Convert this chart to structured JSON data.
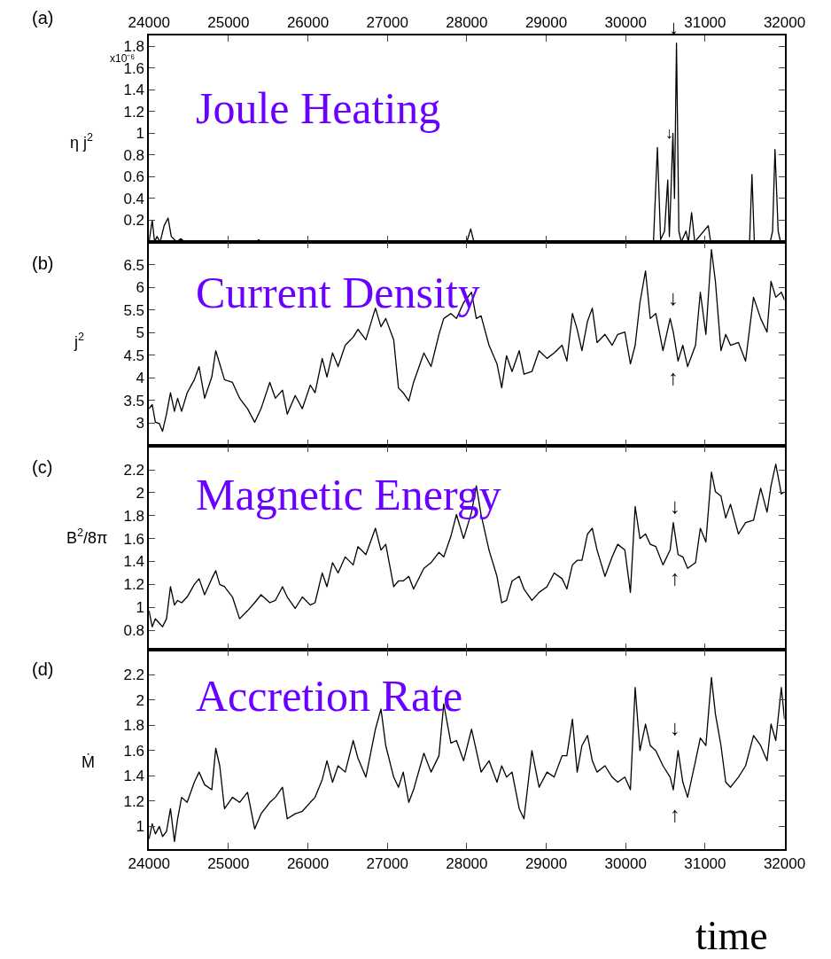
{
  "chart_data": [
    {
      "type": "line",
      "title": "Joule Heating",
      "ylabel": "η j$^{2}$",
      "annotations": [
        "(a)",
        "x10⁻⁶",
        "↓",
        "↓"
      ],
      "xlim": [
        24000,
        32000
      ],
      "xticks": [
        24000,
        25000,
        26000,
        27000,
        28000,
        29000,
        30000,
        31000,
        32000
      ],
      "ylim": [
        0,
        1.9
      ],
      "yticks": [
        0.2,
        0.4,
        0.6,
        0.8,
        1,
        1.2,
        1.4,
        1.6,
        1.8
      ],
      "grid": false,
      "marker": "none",
      "line_style": "solid",
      "series": [
        {
          "color": "#000000",
          "x": [
            24000,
            24040,
            24070,
            24100,
            24140,
            24190,
            24240,
            24280,
            24350,
            24400,
            24450,
            25350,
            25380,
            25410,
            28000,
            28050,
            28090,
            30350,
            30400,
            30440,
            30490,
            30530,
            30550,
            30575,
            30595,
            30615,
            30640,
            30670,
            30700,
            30760,
            30790,
            30830,
            30870,
            31040,
            31070,
            31560,
            31590,
            31620,
            31820,
            31850,
            31880,
            31920,
            31950,
            32000
          ],
          "values": [
            0,
            0.2,
            0,
            0.05,
            0,
            0.15,
            0.22,
            0.05,
            0,
            0.03,
            0,
            0,
            0.02,
            0,
            0,
            0.12,
            0,
            0,
            0.87,
            0.02,
            0.1,
            0.57,
            0.05,
            0.55,
            1.0,
            0.4,
            1.83,
            0.1,
            0,
            0.1,
            0,
            0.27,
            0,
            0.15,
            0,
            0,
            0.62,
            0,
            0,
            0.1,
            0.85,
            0.1,
            0,
            0
          ]
        }
      ]
    },
    {
      "type": "line",
      "title": "Current Density",
      "ylabel": "j$^{2}$",
      "annotations": [
        "(b)",
        "↓",
        "↑"
      ],
      "xlim": [
        24000,
        32000
      ],
      "xticks": [
        24000,
        25000,
        26000,
        27000,
        28000,
        29000,
        30000,
        31000,
        32000
      ],
      "ylim": [
        2.5,
        7
      ],
      "yticks": [
        3,
        3.5,
        4,
        4.5,
        5,
        5.5,
        6,
        6.5
      ],
      "tick_labels": "y",
      "grid": false,
      "marker": "none",
      "line_style": "solid",
      "x": [
        24000,
        24040,
        24080,
        24130,
        24170,
        24220,
        24270,
        24320,
        24360,
        24410,
        24480,
        24570,
        24630,
        24700,
        24790,
        24840,
        24890,
        24950,
        25050,
        25140,
        25240,
        25330,
        25410,
        25520,
        25590,
        25680,
        25740,
        25840,
        25930,
        26030,
        26090,
        26180,
        26240,
        26310,
        26380,
        26470,
        26570,
        26630,
        26730,
        26850,
        26920,
        26980,
        27080,
        27140,
        27200,
        27270,
        27330,
        27460,
        27550,
        27650,
        27710,
        27800,
        27870,
        27960,
        28060,
        28120,
        28180,
        28280,
        28380,
        28440,
        28500,
        28570,
        28660,
        28720,
        28820,
        28910,
        29010,
        29100,
        29200,
        29260,
        29330,
        29390,
        29450,
        29520,
        29580,
        29640,
        29740,
        29830,
        29900,
        29990,
        30060,
        30120,
        30180,
        30250,
        30310,
        30380,
        30470,
        30560,
        30600,
        30660,
        30720,
        30780,
        30880,
        30940,
        31010,
        31080,
        31130,
        31200,
        31260,
        31320,
        31420,
        31510,
        31610,
        31700,
        31780,
        31830,
        31890,
        31960,
        32000
      ],
      "series": [
        {
          "color": "#000000",
          "values": [
            3.32,
            3.41,
            3.02,
            2.99,
            2.82,
            3.2,
            3.67,
            3.26,
            3.55,
            3.26,
            3.67,
            3.96,
            4.25,
            3.55,
            4.02,
            4.6,
            4.31,
            3.96,
            3.9,
            3.55,
            3.32,
            3.02,
            3.32,
            3.9,
            3.55,
            3.73,
            3.2,
            3.61,
            3.32,
            3.84,
            3.67,
            4.43,
            4.02,
            4.55,
            4.25,
            4.72,
            4.9,
            5.07,
            4.84,
            5.54,
            5.13,
            5.31,
            4.84,
            3.78,
            3.67,
            3.49,
            3.9,
            4.55,
            4.25,
            4.96,
            5.31,
            5.42,
            5.31,
            5.66,
            5.89,
            5.31,
            5.37,
            4.72,
            4.31,
            3.78,
            4.49,
            4.14,
            4.6,
            4.08,
            4.14,
            4.6,
            4.43,
            4.55,
            4.72,
            4.37,
            5.42,
            5.07,
            4.6,
            5.25,
            5.54,
            4.78,
            4.96,
            4.72,
            4.96,
            5.01,
            4.31,
            4.72,
            5.66,
            6.36,
            5.31,
            5.42,
            4.6,
            5.31,
            5.01,
            4.37,
            4.72,
            4.25,
            4.72,
            5.89,
            4.96,
            6.83,
            6.13,
            4.6,
            4.96,
            4.72,
            4.78,
            4.37,
            5.78,
            5.31,
            5.01,
            6.13,
            5.78,
            5.89,
            5.72
          ]
        }
      ]
    },
    {
      "type": "line",
      "title": "Magnetic Energy",
      "ylabel": "B$^{2}$/8π",
      "annotations": [
        "(c)",
        "↓",
        "↑"
      ],
      "xlim": [
        24000,
        32000
      ],
      "xticks": [
        24000,
        25000,
        26000,
        27000,
        28000,
        29000,
        30000,
        31000,
        32000
      ],
      "ylim": [
        0.63,
        2.41
      ],
      "yticks": [
        0.8,
        1,
        1.2,
        1.4,
        1.6,
        1.8,
        2,
        2.2
      ],
      "tick_labels": "y",
      "grid": false,
      "marker": "none",
      "line_style": "solid",
      "x": [
        24000,
        24040,
        24080,
        24130,
        24170,
        24220,
        24270,
        24320,
        24360,
        24410,
        24480,
        24570,
        24630,
        24700,
        24790,
        24840,
        24890,
        24950,
        25050,
        25140,
        25240,
        25330,
        25410,
        25520,
        25590,
        25680,
        25740,
        25840,
        25930,
        26030,
        26090,
        26180,
        26240,
        26310,
        26380,
        26470,
        26570,
        26630,
        26730,
        26850,
        26920,
        26980,
        27080,
        27140,
        27200,
        27270,
        27330,
        27460,
        27550,
        27650,
        27710,
        27800,
        27870,
        27960,
        28060,
        28120,
        28180,
        28280,
        28380,
        28440,
        28500,
        28570,
        28660,
        28720,
        28820,
        28910,
        29010,
        29100,
        29200,
        29260,
        29330,
        29390,
        29450,
        29520,
        29580,
        29640,
        29740,
        29830,
        29900,
        29990,
        30060,
        30120,
        30180,
        30250,
        30310,
        30380,
        30470,
        30560,
        30600,
        30660,
        30720,
        30780,
        30880,
        30940,
        31010,
        31080,
        31130,
        31200,
        31260,
        31320,
        31420,
        31510,
        31610,
        31700,
        31780,
        31830,
        31890,
        31960,
        32000
      ],
      "series": [
        {
          "color": "#000000",
          "values": [
            0.97,
            0.83,
            0.9,
            0.86,
            0.83,
            0.9,
            1.18,
            1.02,
            1.06,
            1.04,
            1.09,
            1.2,
            1.25,
            1.11,
            1.25,
            1.32,
            1.2,
            1.18,
            1.09,
            0.9,
            0.97,
            1.04,
            1.11,
            1.04,
            1.06,
            1.18,
            1.09,
            0.99,
            1.09,
            1.02,
            1.04,
            1.3,
            1.18,
            1.39,
            1.3,
            1.44,
            1.37,
            1.53,
            1.46,
            1.69,
            1.5,
            1.55,
            1.18,
            1.23,
            1.23,
            1.27,
            1.16,
            1.34,
            1.39,
            1.48,
            1.44,
            1.62,
            1.81,
            1.6,
            1.83,
            2.06,
            1.81,
            1.5,
            1.27,
            1.04,
            1.06,
            1.23,
            1.27,
            1.16,
            1.06,
            1.13,
            1.18,
            1.3,
            1.25,
            1.16,
            1.37,
            1.41,
            1.41,
            1.64,
            1.69,
            1.5,
            1.27,
            1.44,
            1.55,
            1.5,
            1.13,
            1.88,
            1.6,
            1.64,
            1.55,
            1.53,
            1.37,
            1.5,
            1.74,
            1.46,
            1.44,
            1.34,
            1.39,
            1.69,
            1.57,
            2.18,
            2.01,
            1.97,
            1.78,
            1.9,
            1.64,
            1.74,
            1.76,
            2.04,
            1.83,
            2.06,
            2.25,
            1.99,
            2.01
          ]
        }
      ]
    },
    {
      "type": "line",
      "title": "Accretion Rate",
      "ylabel": "Ṁ",
      "xlabel": "time",
      "annotations": [
        "(d)",
        "↓",
        "↑"
      ],
      "xlim": [
        24000,
        32000
      ],
      "xticks": [
        24000,
        25000,
        26000,
        27000,
        28000,
        29000,
        30000,
        31000,
        32000
      ],
      "ylim": [
        0.82,
        2.4
      ],
      "yticks": [
        1,
        1.2,
        1.4,
        1.6,
        1.8,
        2,
        2.2
      ],
      "grid": false,
      "marker": "none",
      "line_style": "solid",
      "x": [
        24000,
        24040,
        24080,
        24130,
        24170,
        24220,
        24270,
        24320,
        24360,
        24410,
        24480,
        24570,
        24630,
        24700,
        24790,
        24840,
        24890,
        24950,
        25050,
        25140,
        25240,
        25330,
        25410,
        25520,
        25590,
        25680,
        25740,
        25840,
        25930,
        26030,
        26090,
        26180,
        26240,
        26310,
        26380,
        26470,
        26570,
        26630,
        26730,
        26850,
        26920,
        26980,
        27080,
        27140,
        27200,
        27270,
        27330,
        27460,
        27550,
        27650,
        27710,
        27800,
        27870,
        27960,
        28060,
        28120,
        28180,
        28280,
        28380,
        28440,
        28500,
        28570,
        28660,
        28720,
        28820,
        28910,
        29010,
        29100,
        29200,
        29260,
        29330,
        29390,
        29450,
        29520,
        29580,
        29640,
        29740,
        29830,
        29900,
        29990,
        30060,
        30120,
        30180,
        30250,
        30310,
        30380,
        30470,
        30560,
        30600,
        30660,
        30720,
        30780,
        30880,
        30940,
        31010,
        31080,
        31130,
        31200,
        31260,
        31320,
        31420,
        31510,
        31610,
        31700,
        31780,
        31830,
        31890,
        31960,
        32000
      ],
      "series": [
        {
          "color": "#000000",
          "values": [
            0.9,
            1.02,
            0.94,
            1.0,
            0.92,
            0.96,
            1.14,
            0.88,
            1.06,
            1.23,
            1.19,
            1.35,
            1.43,
            1.33,
            1.29,
            1.62,
            1.48,
            1.14,
            1.23,
            1.19,
            1.27,
            0.98,
            1.1,
            1.19,
            1.23,
            1.31,
            1.06,
            1.1,
            1.12,
            1.19,
            1.23,
            1.37,
            1.52,
            1.35,
            1.48,
            1.43,
            1.68,
            1.54,
            1.39,
            1.77,
            1.93,
            1.64,
            1.39,
            1.31,
            1.43,
            1.19,
            1.29,
            1.58,
            1.43,
            1.56,
            1.97,
            1.66,
            1.68,
            1.52,
            1.77,
            1.6,
            1.43,
            1.52,
            1.35,
            1.48,
            1.39,
            1.43,
            1.14,
            1.06,
            1.6,
            1.31,
            1.43,
            1.39,
            1.56,
            1.56,
            1.85,
            1.43,
            1.64,
            1.72,
            1.52,
            1.43,
            1.48,
            1.39,
            1.35,
            1.39,
            1.29,
            2.1,
            1.6,
            1.81,
            1.64,
            1.6,
            1.48,
            1.39,
            1.29,
            1.6,
            1.35,
            1.23,
            1.52,
            1.7,
            1.64,
            2.18,
            1.89,
            1.64,
            1.35,
            1.31,
            1.39,
            1.48,
            1.72,
            1.64,
            1.52,
            1.81,
            1.68,
            2.1,
            1.85
          ]
        }
      ]
    }
  ]
}
